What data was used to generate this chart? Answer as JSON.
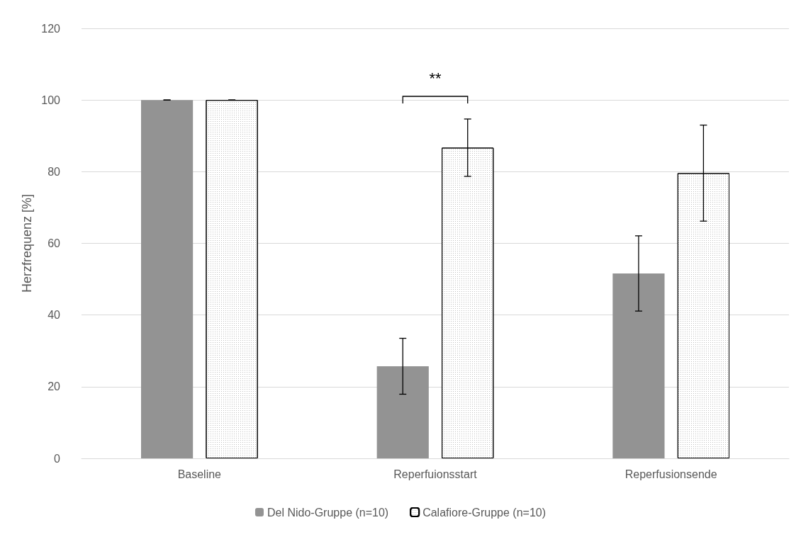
{
  "chart_data": {
    "type": "bar",
    "ylabel": "Herzfrequenz [%]",
    "categories": [
      "Baseline",
      "Reperfuionsstart",
      "Reperfusionsende"
    ],
    "series": [
      {
        "name": "Del Nido-Gruppe (n=10)",
        "color": "#939393",
        "values": [
          100,
          25.7,
          51.6
        ],
        "errors": [
          0,
          7.8,
          10.5
        ]
      },
      {
        "name": "Calafiore-Gruppe (n=10)",
        "color": "#ffffff",
        "values": [
          100,
          86.7,
          79.6
        ],
        "errors": [
          0,
          8,
          13.4
        ]
      }
    ],
    "ylim": [
      0,
      120
    ],
    "yticks": [
      0,
      20,
      40,
      60,
      80,
      100,
      120
    ],
    "grid": "y",
    "legend": "bottom",
    "annotations": [
      "**"
    ]
  }
}
